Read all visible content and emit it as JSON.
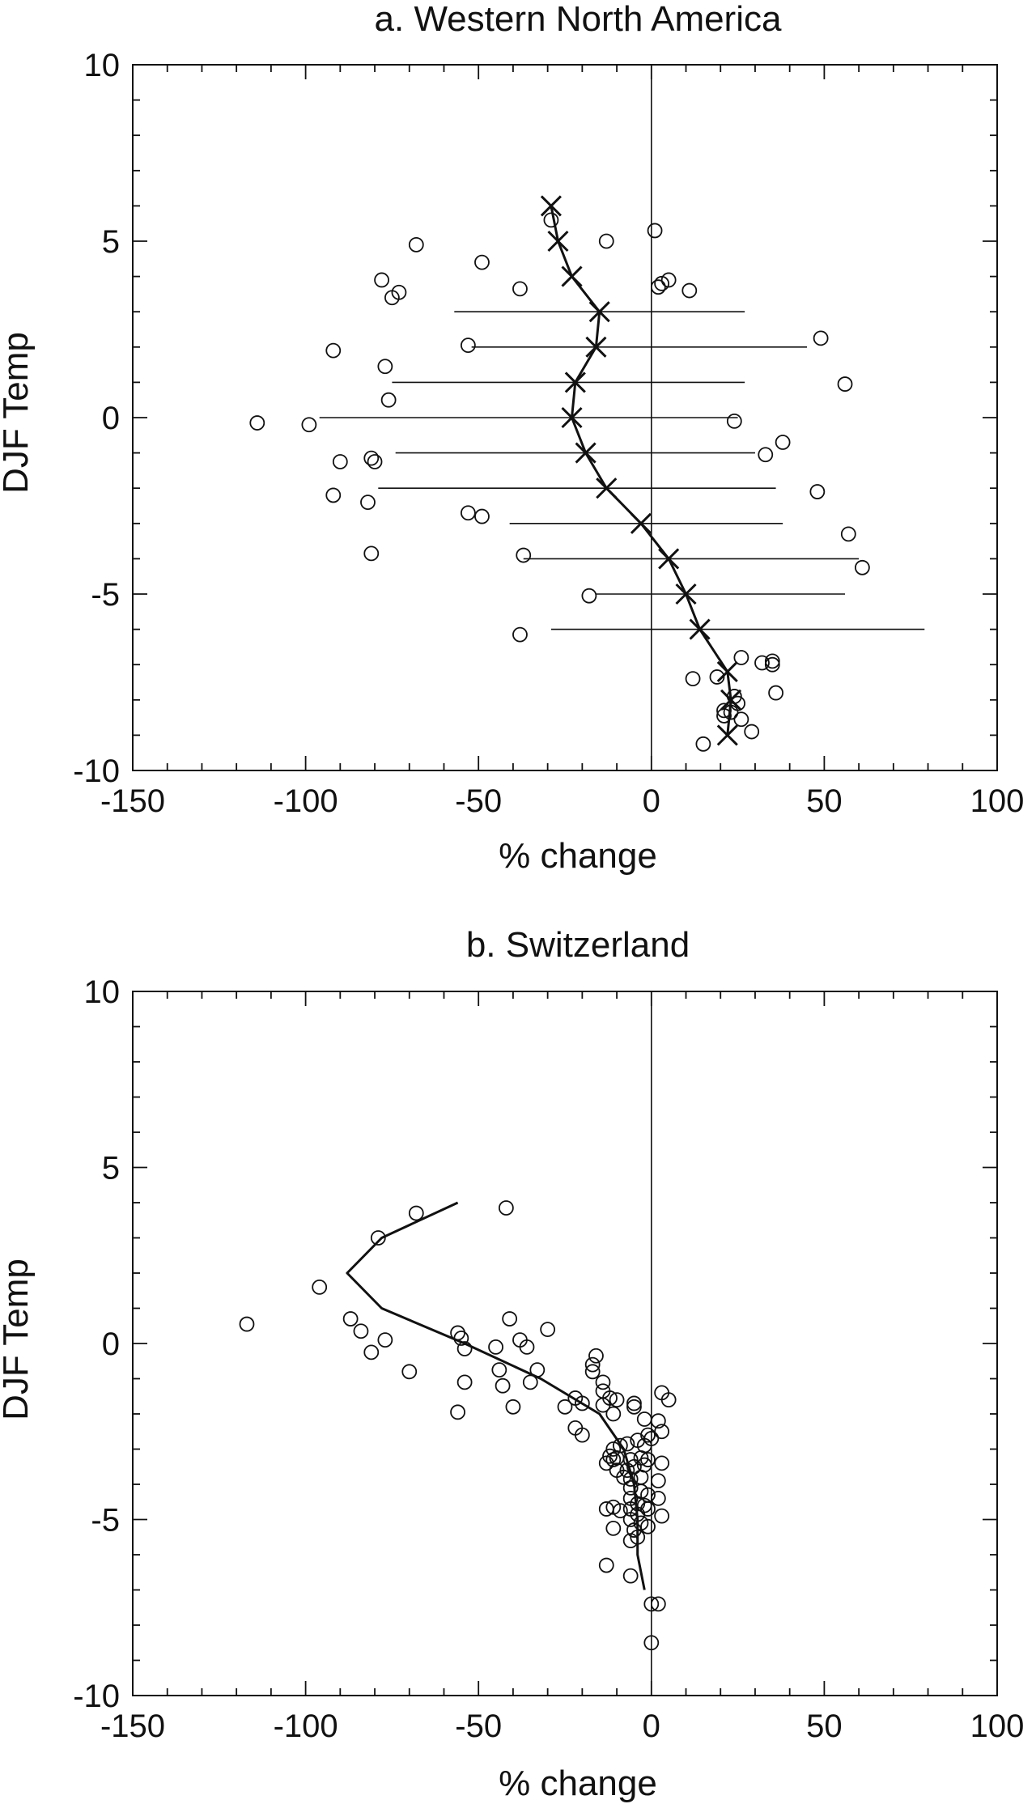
{
  "chart_data": [
    {
      "type": "scatter",
      "title": "a. Western North America",
      "xlabel": "% change",
      "ylabel": "DJF Temp",
      "xlim": [
        -150,
        100
      ],
      "ylim": [
        -10,
        10
      ],
      "xticks": [
        "-150",
        "-100",
        "-50",
        "0",
        "50",
        "100"
      ],
      "yticks": [
        "10",
        "5",
        "0",
        "-5",
        "-10"
      ],
      "grid": false,
      "vline_at_x": 0,
      "points": [
        [
          -29,
          5.6
        ],
        [
          1,
          5.3
        ],
        [
          -68,
          4.9
        ],
        [
          -13,
          5.0
        ],
        [
          -49,
          4.4
        ],
        [
          -78,
          3.9
        ],
        [
          -73,
          3.55
        ],
        [
          -75,
          3.4
        ],
        [
          -38,
          3.65
        ],
        [
          2,
          3.7
        ],
        [
          3,
          3.8
        ],
        [
          5,
          3.9
        ],
        [
          11,
          3.6
        ],
        [
          -92,
          1.9
        ],
        [
          -53,
          2.05
        ],
        [
          49,
          2.25
        ],
        [
          -77,
          1.45
        ],
        [
          56,
          0.95
        ],
        [
          -76,
          0.5
        ],
        [
          -114,
          -0.15
        ],
        [
          -99,
          -0.2
        ],
        [
          24,
          -0.1
        ],
        [
          38,
          -0.7
        ],
        [
          -81,
          -1.15
        ],
        [
          -80,
          -1.25
        ],
        [
          -90,
          -1.25
        ],
        [
          33,
          -1.05
        ],
        [
          -92,
          -2.2
        ],
        [
          -82,
          -2.4
        ],
        [
          48,
          -2.1
        ],
        [
          -53,
          -2.7
        ],
        [
          -49,
          -2.8
        ],
        [
          57,
          -3.3
        ],
        [
          -81,
          -3.85
        ],
        [
          -37,
          -3.9
        ],
        [
          61,
          -4.25
        ],
        [
          -18,
          -5.05
        ],
        [
          -38,
          -6.15
        ],
        [
          26,
          -6.8
        ],
        [
          32,
          -6.95
        ],
        [
          35,
          -6.9
        ],
        [
          35,
          -7.0
        ],
        [
          12,
          -7.4
        ],
        [
          19,
          -7.35
        ],
        [
          36,
          -7.8
        ],
        [
          24,
          -7.9
        ],
        [
          25,
          -8.1
        ],
        [
          23,
          -8.35
        ],
        [
          21,
          -8.3
        ],
        [
          21,
          -8.45
        ],
        [
          26,
          -8.55
        ],
        [
          29,
          -8.9
        ],
        [
          15,
          -9.25
        ]
      ],
      "mean_line": [
        [
          -29,
          6
        ],
        [
          -27,
          5
        ],
        [
          -23,
          4
        ],
        [
          -15,
          3
        ],
        [
          -16,
          2
        ],
        [
          -22,
          1
        ],
        [
          -23,
          0
        ],
        [
          -19,
          -1
        ],
        [
          -13,
          -2
        ],
        [
          -3,
          -3
        ],
        [
          5,
          -4
        ],
        [
          10,
          -5
        ],
        [
          14,
          -6
        ],
        [
          22,
          -7.2
        ],
        [
          23,
          -8
        ],
        [
          22,
          -9
        ]
      ],
      "ranges": [
        [
          3,
          -57,
          27
        ],
        [
          2,
          -52,
          45
        ],
        [
          1,
          -75,
          27
        ],
        [
          0,
          -96,
          25
        ],
        [
          -1,
          -74,
          30
        ],
        [
          -2,
          -79,
          36
        ],
        [
          -3,
          -41,
          38
        ],
        [
          -4,
          -37,
          60
        ],
        [
          -5,
          -16,
          56
        ],
        [
          -6,
          -29,
          79
        ]
      ]
    },
    {
      "type": "scatter",
      "title": "b. Switzerland",
      "xlabel": "% change",
      "ylabel": "DJF Temp",
      "xlim": [
        -150,
        100
      ],
      "ylim": [
        -10,
        10
      ],
      "xticks": [
        "-150",
        "-100",
        "-50",
        "0",
        "50",
        "100"
      ],
      "yticks": [
        "10",
        "5",
        "0",
        "-5",
        "-10"
      ],
      "grid": false,
      "vline_at_x": 0,
      "points": [
        [
          -68,
          3.7
        ],
        [
          -42,
          3.85
        ],
        [
          -79,
          3.0
        ],
        [
          -96,
          1.6
        ],
        [
          -117,
          0.55
        ],
        [
          -87,
          0.7
        ],
        [
          -84,
          0.35
        ],
        [
          -41,
          0.7
        ],
        [
          -30,
          0.4
        ],
        [
          -77,
          0.1
        ],
        [
          -56,
          0.3
        ],
        [
          -55,
          0.15
        ],
        [
          -54,
          -0.15
        ],
        [
          -81,
          -0.25
        ],
        [
          -38,
          0.1
        ],
        [
          -36,
          -0.1
        ],
        [
          -45,
          -0.1
        ],
        [
          -16,
          -0.35
        ],
        [
          -17,
          -0.6
        ],
        [
          -17,
          -0.8
        ],
        [
          -70,
          -0.8
        ],
        [
          -44,
          -0.75
        ],
        [
          -33,
          -0.75
        ],
        [
          -54,
          -1.1
        ],
        [
          -43,
          -1.2
        ],
        [
          -35,
          -1.1
        ],
        [
          -14,
          -1.1
        ],
        [
          -14,
          -1.35
        ],
        [
          -12,
          -1.55
        ],
        [
          -22,
          -1.55
        ],
        [
          -20,
          -1.7
        ],
        [
          -14,
          -1.75
        ],
        [
          -25,
          -1.8
        ],
        [
          -10,
          -1.6
        ],
        [
          -5,
          -1.7
        ],
        [
          -5,
          -1.8
        ],
        [
          -40,
          -1.8
        ],
        [
          -56,
          -1.95
        ],
        [
          -11,
          -2.0
        ],
        [
          -2,
          -2.15
        ],
        [
          2,
          -2.2
        ],
        [
          3,
          -1.4
        ],
        [
          5,
          -1.6
        ],
        [
          -22,
          -2.4
        ],
        [
          -20,
          -2.6
        ],
        [
          3,
          -2.5
        ],
        [
          -1,
          -2.6
        ],
        [
          0,
          -2.7
        ],
        [
          -2,
          -2.9
        ],
        [
          -4,
          -2.75
        ],
        [
          -7,
          -2.85
        ],
        [
          -9,
          -2.9
        ],
        [
          -11,
          -3.0
        ],
        [
          -12,
          -3.2
        ],
        [
          -10,
          -3.25
        ],
        [
          -11,
          -3.3
        ],
        [
          -6,
          -3.3
        ],
        [
          -3,
          -3.25
        ],
        [
          -1,
          -3.3
        ],
        [
          -13,
          -3.4
        ],
        [
          -10,
          -3.6
        ],
        [
          -7,
          -3.6
        ],
        [
          -5,
          -3.5
        ],
        [
          -2,
          -3.45
        ],
        [
          3,
          -3.4
        ],
        [
          -8,
          -3.8
        ],
        [
          -6,
          -3.85
        ],
        [
          -3,
          -3.8
        ],
        [
          2,
          -3.9
        ],
        [
          -6,
          -4.1
        ],
        [
          -3,
          -4.2
        ],
        [
          -1,
          -4.3
        ],
        [
          2,
          -4.4
        ],
        [
          -6,
          -4.4
        ],
        [
          -4,
          -4.55
        ],
        [
          -2,
          -4.6
        ],
        [
          -13,
          -4.7
        ],
        [
          -11,
          -4.65
        ],
        [
          -9,
          -4.75
        ],
        [
          -6,
          -4.7
        ],
        [
          -4,
          -4.85
        ],
        [
          -1,
          -4.7
        ],
        [
          3,
          -4.9
        ],
        [
          -6,
          -5.0
        ],
        [
          -3,
          -5.1
        ],
        [
          -1,
          -5.2
        ],
        [
          -11,
          -5.25
        ],
        [
          -5,
          -5.3
        ],
        [
          -4,
          -5.5
        ],
        [
          -6,
          -5.6
        ],
        [
          -13,
          -6.3
        ],
        [
          -6,
          -6.6
        ],
        [
          0,
          -7.4
        ],
        [
          2,
          -7.4
        ],
        [
          0,
          -8.5
        ]
      ],
      "mean_line": [
        [
          -56,
          4
        ],
        [
          -78,
          3
        ],
        [
          -88,
          2
        ],
        [
          -78,
          1
        ],
        [
          -54,
          0
        ],
        [
          -32,
          -1
        ],
        [
          -15,
          -2
        ],
        [
          -8,
          -3
        ],
        [
          -5,
          -4
        ],
        [
          -4,
          -5
        ],
        [
          -4,
          -6
        ],
        [
          -2,
          -7
        ]
      ]
    }
  ]
}
